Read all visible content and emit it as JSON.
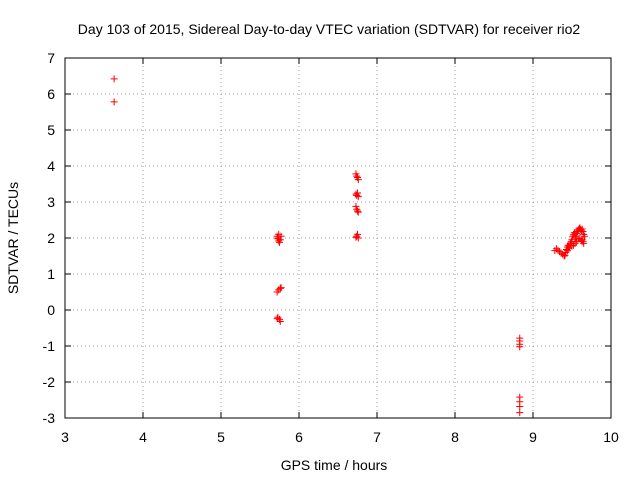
{
  "chart_data": {
    "type": "scatter",
    "title": "Day 103 of 2015, Sidereal Day-to-day VTEC variation (SDTVAR) for receiver rio2",
    "xlabel": "GPS time / hours",
    "ylabel": "SDTVAR / TECUs",
    "xlim": [
      3,
      10
    ],
    "ylim": [
      -3,
      7
    ],
    "xticks": [
      "3",
      "4",
      "5",
      "6",
      "7",
      "8",
      "9",
      "10"
    ],
    "yticks": [
      "-3",
      "-2",
      "-1",
      "0",
      "1",
      "2",
      "3",
      "4",
      "5",
      "6",
      "7"
    ],
    "grid": true,
    "marker": "plus",
    "color": "#ff0000",
    "series": [
      {
        "name": "SDTVAR",
        "points": [
          [
            3.63,
            6.42
          ],
          [
            3.63,
            5.78
          ],
          [
            5.72,
            2.05
          ],
          [
            5.73,
            1.98
          ],
          [
            5.74,
            1.92
          ],
          [
            5.75,
            1.88
          ],
          [
            5.76,
            1.95
          ],
          [
            5.77,
            2.05
          ],
          [
            5.74,
            2.1
          ],
          [
            5.73,
            2.0
          ],
          [
            5.72,
            0.5
          ],
          [
            5.74,
            0.56
          ],
          [
            5.76,
            0.6
          ],
          [
            5.77,
            0.62
          ],
          [
            5.72,
            -0.24
          ],
          [
            5.73,
            -0.2
          ],
          [
            5.75,
            -0.26
          ],
          [
            5.76,
            -0.32
          ],
          [
            6.73,
            3.78
          ],
          [
            6.74,
            3.72
          ],
          [
            6.75,
            3.68
          ],
          [
            6.76,
            3.62
          ],
          [
            6.73,
            3.22
          ],
          [
            6.74,
            3.18
          ],
          [
            6.75,
            3.25
          ],
          [
            6.76,
            3.15
          ],
          [
            6.73,
            2.88
          ],
          [
            6.74,
            2.8
          ],
          [
            6.75,
            2.75
          ],
          [
            6.76,
            2.72
          ],
          [
            6.73,
            2.02
          ],
          [
            6.74,
            2.05
          ],
          [
            6.75,
            2.1
          ],
          [
            6.76,
            2.0
          ],
          [
            8.83,
            -0.78
          ],
          [
            8.83,
            -0.86
          ],
          [
            8.83,
            -0.95
          ],
          [
            8.83,
            -1.02
          ],
          [
            8.83,
            -2.42
          ],
          [
            8.83,
            -2.55
          ],
          [
            8.83,
            -2.68
          ],
          [
            8.83,
            -2.85
          ],
          [
            9.28,
            1.65
          ],
          [
            9.3,
            1.7
          ],
          [
            9.32,
            1.66
          ],
          [
            9.34,
            1.62
          ],
          [
            9.36,
            1.58
          ],
          [
            9.38,
            1.55
          ],
          [
            9.4,
            1.5
          ],
          [
            9.41,
            1.52
          ],
          [
            9.42,
            1.6
          ],
          [
            9.43,
            1.68
          ],
          [
            9.44,
            1.75
          ],
          [
            9.45,
            1.8
          ],
          [
            9.46,
            1.74
          ],
          [
            9.47,
            1.78
          ],
          [
            9.48,
            1.85
          ],
          [
            9.49,
            1.9
          ],
          [
            9.5,
            1.95
          ],
          [
            9.51,
            2.05
          ],
          [
            9.52,
            2.1
          ],
          [
            9.53,
            2.15
          ],
          [
            9.54,
            2.05
          ],
          [
            9.55,
            2.0
          ],
          [
            9.56,
            2.12
          ],
          [
            9.57,
            2.18
          ],
          [
            9.58,
            2.22
          ],
          [
            9.59,
            2.25
          ],
          [
            9.6,
            2.28
          ],
          [
            9.61,
            2.24
          ],
          [
            9.62,
            2.2
          ],
          [
            9.63,
            2.25
          ],
          [
            9.64,
            2.18
          ],
          [
            9.65,
            2.1
          ],
          [
            9.66,
            2.05
          ],
          [
            9.63,
            1.95
          ],
          [
            9.64,
            1.9
          ],
          [
            9.65,
            1.85
          ],
          [
            9.62,
            1.92
          ],
          [
            9.6,
            2.0
          ],
          [
            9.58,
            1.98
          ],
          [
            9.56,
            1.9
          ],
          [
            9.54,
            1.85
          ],
          [
            9.52,
            1.8
          ],
          [
            9.5,
            1.78
          ],
          [
            9.46,
            1.7
          ],
          [
            9.44,
            1.65
          ]
        ]
      }
    ]
  }
}
